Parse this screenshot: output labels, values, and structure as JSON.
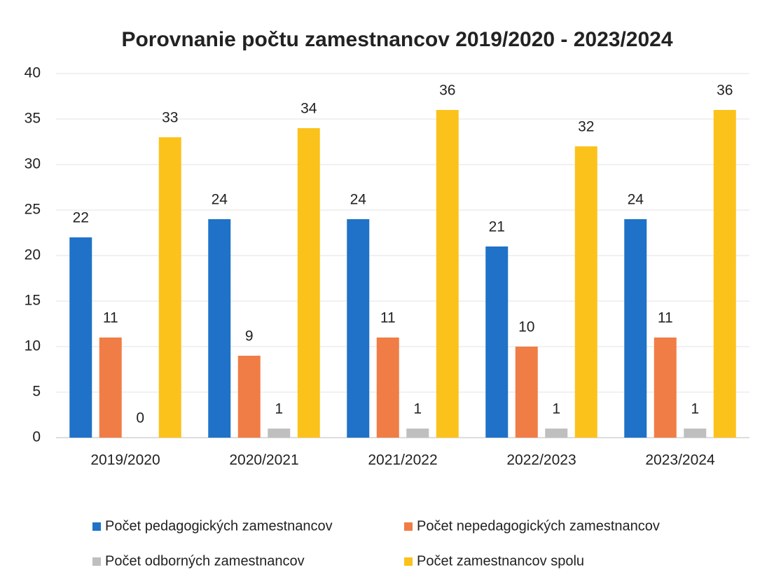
{
  "chart_data": {
    "type": "bar",
    "title": "Porovnanie počtu zamestnancov 2019/2020 -  2023/2024",
    "categories": [
      "2019/2020",
      "2020/2021",
      "2021/2022",
      "2022/2023",
      "2023/2024"
    ],
    "series": [
      {
        "name": "Počet pedagogických zamestnancov",
        "color": "#1f72c8",
        "values": [
          22,
          24,
          24,
          21,
          24
        ]
      },
      {
        "name": "Počet nepedagogických zamestnancov",
        "color": "#f07d45",
        "values": [
          11,
          9,
          11,
          10,
          11
        ]
      },
      {
        "name": "Počet odborných zamestnancov",
        "color": "#bfbfbf",
        "values": [
          0,
          1,
          1,
          1,
          1
        ]
      },
      {
        "name": "Počet zamestnancov spolu",
        "color": "#fcc21c",
        "values": [
          33,
          34,
          36,
          32,
          36
        ]
      }
    ],
    "ylim": [
      0,
      40
    ],
    "yticks": [
      0,
      5,
      10,
      15,
      20,
      25,
      30,
      35,
      40
    ],
    "grid": true,
    "legend": "bottom"
  }
}
